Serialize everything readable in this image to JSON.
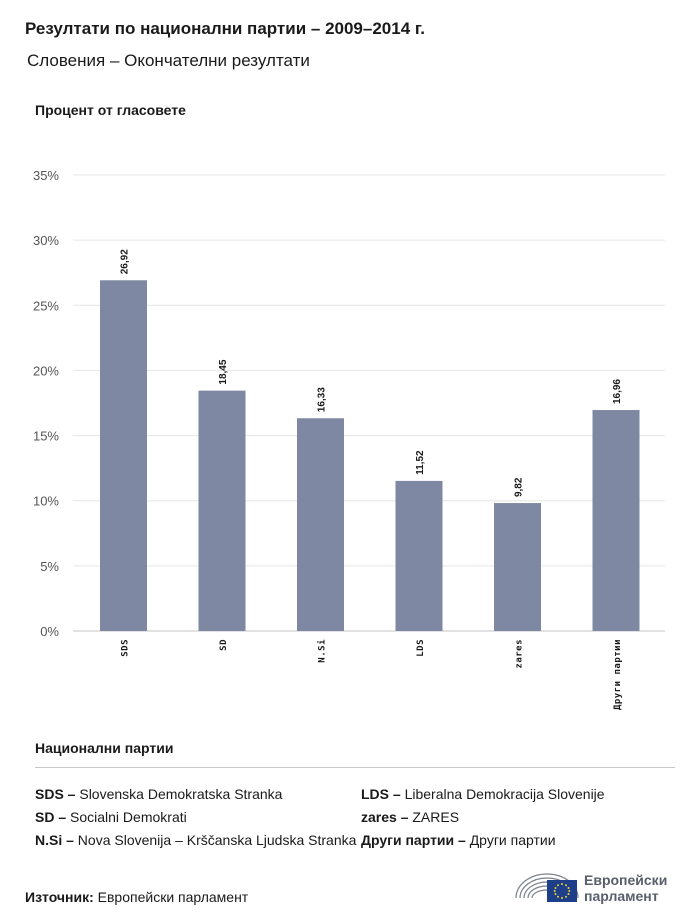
{
  "header": {
    "title": "Резултати по национални партии – 2009–2014 г.",
    "subtitle": "Словения – Окончателни резултати"
  },
  "chart_data": {
    "type": "bar",
    "ylabel": "Процент от гласовете",
    "categories": [
      "SDS",
      "SD",
      "N.Si",
      "LDS",
      "zares",
      "Други партии"
    ],
    "values": [
      26.92,
      18.45,
      16.33,
      11.52,
      9.82,
      16.96
    ],
    "value_labels": [
      "26,92",
      "18,45",
      "16,33",
      "11,52",
      "9,82",
      "16,96"
    ],
    "yticks": [
      "0%",
      "5%",
      "10%",
      "15%",
      "20%",
      "25%",
      "30%",
      "35%"
    ],
    "ylim": [
      0,
      35
    ],
    "grid": true,
    "bar_color": "#7f88a3"
  },
  "legend": {
    "title": "Национални партии",
    "items": [
      {
        "abbr": "SDS –",
        "name": "Slovenska Demokratska Stranka"
      },
      {
        "abbr": "SD –",
        "name": "Socialni Demokrati"
      },
      {
        "abbr": "N.Si –",
        "name": "Nova Slovenija – Krščanska Ljudska Stranka"
      },
      {
        "abbr": "LDS –",
        "name": "Liberalna Demokracija Slovenije"
      },
      {
        "abbr": "zares –",
        "name": "ZARES"
      },
      {
        "abbr": "Други партии –",
        "name": "Други партии"
      }
    ]
  },
  "footer": {
    "source_label": "Източник:",
    "source_value": "Европейски парламент",
    "logo_line1": "Европейски",
    "logo_line2": "парламент"
  }
}
